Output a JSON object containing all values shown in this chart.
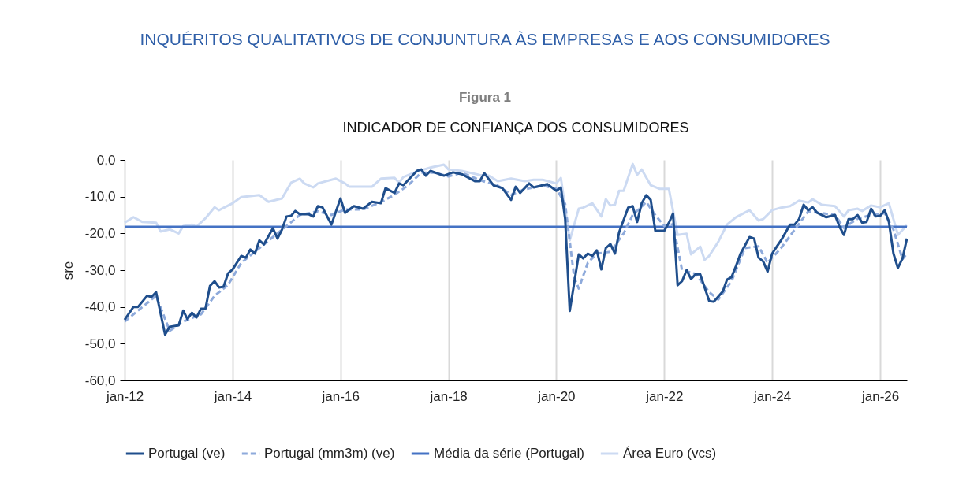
{
  "chart_data": {
    "type": "line",
    "title": "INDICADOR DE CONFIANÇA DOS CONSUMIDORES",
    "ylabel": "sre",
    "annotations": [
      "INQUÉRITOS QUALITATIVOS DE CONJUNTURA ÀS EMPRESAS E AOS CONSUMIDORES",
      "Figura 1"
    ],
    "xlim": [
      "2012-01",
      "2026-07"
    ],
    "xticks": [
      {
        "value": "2012-01",
        "label": "jan-12"
      },
      {
        "value": "2014-01",
        "label": "jan-14"
      },
      {
        "value": "2016-01",
        "label": "jan-16"
      },
      {
        "value": "2018-01",
        "label": "jan-18"
      },
      {
        "value": "2020-01",
        "label": "jan-20"
      },
      {
        "value": "2022-01",
        "label": "jan-22"
      },
      {
        "value": "2024-01",
        "label": "jan-24"
      },
      {
        "value": "2026-01",
        "label": "jan-26"
      }
    ],
    "ylim": [
      -60,
      0
    ],
    "yticks": [
      {
        "value": -60,
        "label": "-60,0"
      },
      {
        "value": -50,
        "label": "-50,0"
      },
      {
        "value": -40,
        "label": "-40,0"
      },
      {
        "value": -30,
        "label": "-30,0"
      },
      {
        "value": -20,
        "label": "-20,0"
      },
      {
        "value": -10,
        "label": "-10,0"
      },
      {
        "value": 0,
        "label": "0,0"
      }
    ],
    "grid": "x",
    "legend": "bottom",
    "series": [
      {
        "name": "Área Euro (vcs)",
        "color": "#ccdaf2",
        "line_style": "solid",
        "x": [
          "2012-01",
          "2012-03",
          "2012-05",
          "2012-08",
          "2012-09",
          "2012-11",
          "2013-01",
          "2013-02",
          "2013-04",
          "2013-05",
          "2013-07",
          "2013-09",
          "2013-10",
          "2014-01",
          "2014-03",
          "2014-07",
          "2014-09",
          "2014-12",
          "2015-02",
          "2015-04",
          "2015-05",
          "2015-07",
          "2015-08",
          "2015-12",
          "2016-02",
          "2016-03",
          "2016-08",
          "2016-10",
          "2017-01",
          "2017-02",
          "2017-03",
          "2017-06",
          "2017-09",
          "2017-12",
          "2018-01",
          "2018-04",
          "2018-08",
          "2018-10",
          "2018-12",
          "2019-03",
          "2019-06",
          "2019-08",
          "2019-10",
          "2020-01",
          "2020-02",
          "2020-04",
          "2020-06",
          "2020-07",
          "2020-09",
          "2020-11",
          "2020-12",
          "2021-01",
          "2021-02",
          "2021-03",
          "2021-04",
          "2021-06",
          "2021-07",
          "2021-08",
          "2021-10",
          "2021-12",
          "2022-02",
          "2022-04",
          "2022-06",
          "2022-07",
          "2022-09",
          "2022-10",
          "2022-11",
          "2023-01",
          "2023-03",
          "2023-05",
          "2023-08",
          "2023-10",
          "2023-11",
          "2024-01",
          "2024-03",
          "2024-05",
          "2024-07",
          "2024-09",
          "2024-10",
          "2024-12",
          "2025-03",
          "2025-05",
          "2025-06",
          "2025-08",
          "2025-09",
          "2025-11",
          "2026-01",
          "2026-03",
          "2026-05",
          "2026-07"
        ],
        "values": [
          -17.1,
          -15.6,
          -16.9,
          -17.1,
          -19.5,
          -18.9,
          -20,
          -18,
          -17.6,
          -18.2,
          -15.9,
          -12.9,
          -13.7,
          -11.8,
          -10.1,
          -9.6,
          -11.4,
          -10.5,
          -6.2,
          -5.1,
          -6.4,
          -7.5,
          -6.4,
          -5.1,
          -6.4,
          -7.3,
          -7.3,
          -5.1,
          -4.9,
          -6.2,
          -4.7,
          -3.2,
          -2.1,
          -1.3,
          -2.6,
          -3,
          -4.1,
          -4.3,
          -5.8,
          -5.1,
          -5.8,
          -5.4,
          -5.4,
          -6.4,
          -4.9,
          -21.9,
          -13.3,
          -13,
          -11.8,
          -15.4,
          -10.7,
          -12.4,
          -12.2,
          -8.4,
          -8.4,
          -1.1,
          -4.1,
          -2.6,
          -6.9,
          -7.9,
          -7.9,
          -20.4,
          -20.1,
          -25.7,
          -23.6,
          -27.2,
          -26.1,
          -22.3,
          -17.6,
          -15.6,
          -13.7,
          -16.5,
          -16.1,
          -13.7,
          -13,
          -12.6,
          -11.1,
          -11.6,
          -10.7,
          -12.2,
          -12.6,
          -15.4,
          -13.7,
          -13.3,
          -13.9,
          -12.4,
          -12.9,
          -11.8,
          -20.4,
          -17.8
        ]
      },
      {
        "name": "Média da série (Portugal)",
        "color": "#4472c4",
        "line_style": "solid",
        "x": [
          "2012-01",
          "2026-07"
        ],
        "values": [
          -18.2,
          -18.2
        ]
      },
      {
        "name": "Portugal (mm3m) (ve)",
        "color": "#8eaadb",
        "line_style": "dashed",
        "x": [
          "2012-01",
          "2012-04",
          "2012-08",
          "2012-11",
          "2013-02",
          "2013-06",
          "2013-09",
          "2013-12",
          "2014-03",
          "2014-06",
          "2014-10",
          "2015-01",
          "2015-04",
          "2015-08",
          "2015-11",
          "2016-02",
          "2016-06",
          "2016-10",
          "2017-01",
          "2017-04",
          "2017-07",
          "2017-10",
          "2018-01",
          "2018-04",
          "2018-08",
          "2018-12",
          "2019-03",
          "2019-06",
          "2019-10",
          "2020-01",
          "2020-03",
          "2020-05",
          "2020-06",
          "2020-08",
          "2020-10",
          "2021-01",
          "2021-04",
          "2021-06",
          "2021-09",
          "2021-11",
          "2022-01",
          "2022-03",
          "2022-05",
          "2022-08",
          "2022-11",
          "2023-01",
          "2023-04",
          "2023-07",
          "2023-10",
          "2023-12",
          "2024-03",
          "2024-06",
          "2024-09",
          "2024-12",
          "2025-03",
          "2025-05",
          "2025-08",
          "2025-11",
          "2026-02",
          "2026-04",
          "2026-06",
          "2026-07"
        ],
        "values": [
          -44,
          -41,
          -37,
          -46.5,
          -44,
          -42,
          -37,
          -34,
          -28,
          -25,
          -21,
          -18,
          -15,
          -14,
          -15,
          -13.5,
          -13.5,
          -11.5,
          -9.5,
          -7,
          -3.5,
          -3.5,
          -4.5,
          -3.5,
          -5.5,
          -7,
          -9.5,
          -8,
          -7,
          -7.8,
          -12,
          -32,
          -35,
          -28,
          -25.5,
          -25,
          -20,
          -15,
          -11.5,
          -15,
          -18,
          -17.5,
          -30,
          -31,
          -36,
          -38,
          -33,
          -24,
          -23.5,
          -28,
          -24,
          -19,
          -14,
          -14.5,
          -15,
          -18.5,
          -16,
          -15,
          -14.5,
          -19,
          -27,
          -25.5
        ]
      },
      {
        "name": "Portugal (ve)",
        "color": "#1f4e8c",
        "line_style": "solid",
        "x": [
          "2012-01",
          "2012-03",
          "2012-04",
          "2012-06",
          "2012-07",
          "2012-08",
          "2012-10",
          "2012-11",
          "2013-01",
          "2013-02",
          "2013-03",
          "2013-04",
          "2013-05",
          "2013-06",
          "2013-07",
          "2013-08",
          "2013-09",
          "2013-10",
          "2013-11",
          "2013-12",
          "2014-01",
          "2014-03",
          "2014-04",
          "2014-05",
          "2014-06",
          "2014-07",
          "2014-08",
          "2014-10",
          "2014-11",
          "2014-12",
          "2015-01",
          "2015-02",
          "2015-03",
          "2015-04",
          "2015-06",
          "2015-07",
          "2015-08",
          "2015-09",
          "2015-11",
          "2016-01",
          "2016-02",
          "2016-04",
          "2016-06",
          "2016-08",
          "2016-10",
          "2016-11",
          "2017-01",
          "2017-02",
          "2017-03",
          "2017-06",
          "2017-07",
          "2017-08",
          "2017-09",
          "2017-12",
          "2018-02",
          "2018-04",
          "2018-07",
          "2018-08",
          "2018-09",
          "2018-11",
          "2019-01",
          "2019-03",
          "2019-04",
          "2019-05",
          "2019-07",
          "2019-08",
          "2019-11",
          "2020-01",
          "2020-02",
          "2020-03",
          "2020-04",
          "2020-06",
          "2020-07",
          "2020-08",
          "2020-09",
          "2020-10",
          "2020-11",
          "2020-12",
          "2021-01",
          "2021-02",
          "2021-03",
          "2021-05",
          "2021-06",
          "2021-07",
          "2021-08",
          "2021-09",
          "2021-10",
          "2021-11",
          "2022-01",
          "2022-02",
          "2022-03",
          "2022-04",
          "2022-05",
          "2022-06",
          "2022-07",
          "2022-08",
          "2022-09",
          "2022-10",
          "2022-11",
          "2022-12",
          "2023-02",
          "2023-03",
          "2023-04",
          "2023-05",
          "2023-06",
          "2023-08",
          "2023-09",
          "2023-10",
          "2023-11",
          "2023-12",
          "2024-01",
          "2024-02",
          "2024-03",
          "2024-05",
          "2024-06",
          "2024-07",
          "2024-08",
          "2024-09",
          "2024-10",
          "2024-11",
          "2025-01",
          "2025-03",
          "2025-04",
          "2025-05",
          "2025-06",
          "2025-07",
          "2025-08",
          "2025-09",
          "2025-10",
          "2025-11",
          "2025-12",
          "2026-01",
          "2026-02",
          "2026-03",
          "2026-04",
          "2026-05",
          "2026-06",
          "2026-07"
        ],
        "values": [
          -43.5,
          -40,
          -40,
          -37,
          -37.3,
          -36,
          -47.5,
          -45.4,
          -45,
          -41,
          -43.3,
          -41.6,
          -42.9,
          -40.5,
          -40.5,
          -34.3,
          -33,
          -34.7,
          -34.5,
          -30.9,
          -29.8,
          -26.1,
          -26.6,
          -24.4,
          -25.5,
          -21.9,
          -23,
          -18.6,
          -21.4,
          -19,
          -15.4,
          -15.2,
          -13.9,
          -14.8,
          -14.8,
          -15.4,
          -12.6,
          -12.9,
          -17.6,
          -10.5,
          -14.4,
          -12.6,
          -13.3,
          -11.4,
          -11.8,
          -7.7,
          -9,
          -6.4,
          -6.9,
          -3,
          -2.6,
          -4.3,
          -3,
          -4.3,
          -3.4,
          -3.9,
          -5.8,
          -5.8,
          -3.6,
          -6.9,
          -7.7,
          -10.9,
          -7.3,
          -9,
          -6.4,
          -7.5,
          -6.6,
          -8.4,
          -7.5,
          -16.1,
          -41.1,
          -25.7,
          -26.8,
          -25.5,
          -26.1,
          -24.6,
          -29.8,
          -24,
          -22.9,
          -25.5,
          -19.7,
          -13,
          -12.6,
          -16.9,
          -11.8,
          -9.6,
          -10.9,
          -19.3,
          -19.3,
          -17.1,
          -14.6,
          -34.1,
          -33,
          -30,
          -32.4,
          -31.1,
          -31.1,
          -34.7,
          -38.4,
          -38.6,
          -35.8,
          -32.6,
          -31.9,
          -28.9,
          -25.5,
          -21,
          -21.4,
          -26.6,
          -27.6,
          -30.4,
          -25.5,
          -23.6,
          -21.9,
          -17.6,
          -17.6,
          -16.1,
          -12.2,
          -13.7,
          -12.9,
          -14.4,
          -15.6,
          -15,
          -18.2,
          -20.4,
          -16.1,
          -16.1,
          -15,
          -17.1,
          -16.9,
          -13.3,
          -15.4,
          -15.2,
          -13.7,
          -16.9,
          -25.5,
          -29.4,
          -26.8,
          -21.4
        ]
      }
    ]
  }
}
